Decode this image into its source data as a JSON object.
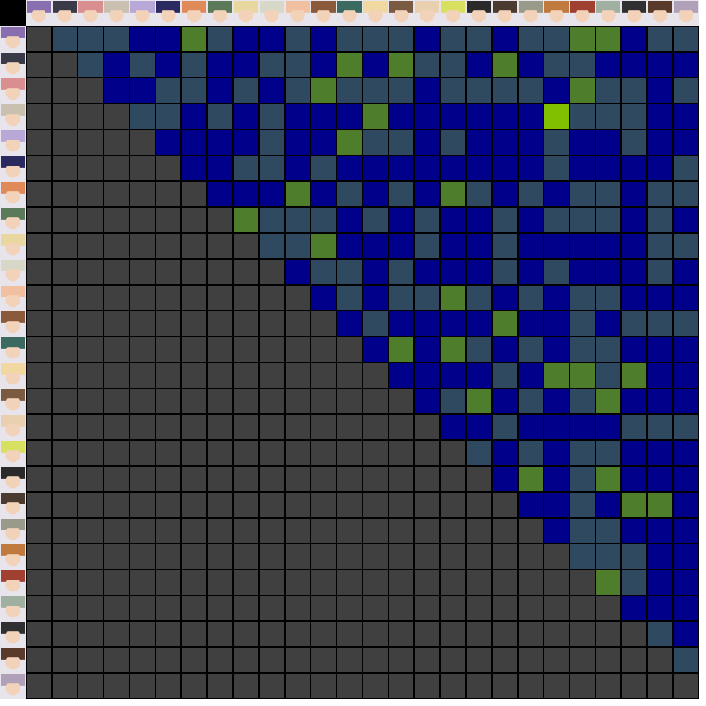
{
  "chart_data": {
    "type": "heatmap",
    "tick_labels": false,
    "grid": true,
    "colors": [
      "#2f4961",
      "#00008b",
      "#4e7d2b",
      "#80c000"
    ],
    "cells": [
      [
        null,
        0,
        0,
        0,
        1,
        1,
        2,
        0,
        1,
        1,
        0,
        1,
        0,
        0,
        0,
        1,
        0,
        0,
        1,
        0,
        0,
        2,
        2,
        1,
        0,
        0
      ],
      [
        null,
        null,
        0,
        1,
        0,
        1,
        0,
        1,
        1,
        0,
        0,
        1,
        2,
        1,
        2,
        0,
        0,
        1,
        2,
        1,
        0,
        0,
        1,
        1,
        1,
        1
      ],
      [
        null,
        null,
        null,
        1,
        1,
        0,
        0,
        1,
        0,
        1,
        0,
        2,
        0,
        0,
        0,
        1,
        0,
        0,
        0,
        0,
        1,
        2,
        0,
        0,
        1,
        0
      ],
      [
        null,
        null,
        null,
        null,
        0,
        0,
        1,
        0,
        1,
        0,
        1,
        1,
        1,
        2,
        1,
        1,
        1,
        1,
        1,
        1,
        3,
        0,
        0,
        0,
        1,
        1
      ],
      [
        null,
        null,
        null,
        null,
        null,
        1,
        1,
        1,
        1,
        0,
        1,
        1,
        2,
        0,
        0,
        1,
        0,
        1,
        1,
        1,
        0,
        1,
        1,
        0,
        1,
        1
      ],
      [
        null,
        null,
        null,
        null,
        null,
        null,
        1,
        1,
        0,
        0,
        1,
        0,
        1,
        1,
        1,
        1,
        1,
        1,
        1,
        1,
        0,
        1,
        1,
        1,
        1,
        0
      ],
      [
        null,
        null,
        null,
        null,
        null,
        null,
        null,
        1,
        1,
        1,
        2,
        1,
        0,
        1,
        0,
        1,
        2,
        0,
        1,
        0,
        1,
        0,
        0,
        1,
        0,
        0
      ],
      [
        null,
        null,
        null,
        null,
        null,
        null,
        null,
        null,
        2,
        0,
        0,
        0,
        1,
        0,
        1,
        0,
        1,
        1,
        0,
        1,
        0,
        0,
        0,
        1,
        0,
        1
      ],
      [
        null,
        null,
        null,
        null,
        null,
        null,
        null,
        null,
        null,
        0,
        0,
        2,
        1,
        1,
        1,
        0,
        1,
        1,
        0,
        1,
        1,
        1,
        1,
        1,
        0,
        0
      ],
      [
        null,
        null,
        null,
        null,
        null,
        null,
        null,
        null,
        null,
        null,
        1,
        0,
        0,
        1,
        0,
        1,
        1,
        1,
        0,
        1,
        0,
        1,
        1,
        1,
        0,
        1
      ],
      [
        null,
        null,
        null,
        null,
        null,
        null,
        null,
        null,
        null,
        null,
        null,
        1,
        0,
        1,
        0,
        0,
        2,
        0,
        1,
        0,
        1,
        0,
        0,
        1,
        1,
        1
      ],
      [
        null,
        null,
        null,
        null,
        null,
        null,
        null,
        null,
        null,
        null,
        null,
        null,
        1,
        0,
        1,
        1,
        1,
        1,
        2,
        1,
        1,
        0,
        1,
        0,
        0,
        0
      ],
      [
        null,
        null,
        null,
        null,
        null,
        null,
        null,
        null,
        null,
        null,
        null,
        null,
        null,
        1,
        2,
        1,
        2,
        0,
        1,
        0,
        1,
        0,
        0,
        1,
        1,
        1
      ],
      [
        null,
        null,
        null,
        null,
        null,
        null,
        null,
        null,
        null,
        null,
        null,
        null,
        null,
        null,
        1,
        1,
        1,
        1,
        0,
        1,
        2,
        2,
        0,
        2,
        1,
        1
      ],
      [
        null,
        null,
        null,
        null,
        null,
        null,
        null,
        null,
        null,
        null,
        null,
        null,
        null,
        null,
        null,
        1,
        0,
        2,
        1,
        0,
        1,
        0,
        2,
        1,
        1,
        1
      ],
      [
        null,
        null,
        null,
        null,
        null,
        null,
        null,
        null,
        null,
        null,
        null,
        null,
        null,
        null,
        null,
        null,
        1,
        1,
        0,
        1,
        1,
        1,
        1,
        0,
        0,
        0
      ],
      [
        null,
        null,
        null,
        null,
        null,
        null,
        null,
        null,
        null,
        null,
        null,
        null,
        null,
        null,
        null,
        null,
        null,
        0,
        1,
        0,
        1,
        0,
        0,
        1,
        1,
        1
      ],
      [
        null,
        null,
        null,
        null,
        null,
        null,
        null,
        null,
        null,
        null,
        null,
        null,
        null,
        null,
        null,
        null,
        null,
        null,
        1,
        2,
        1,
        0,
        2,
        1,
        1,
        1
      ],
      [
        null,
        null,
        null,
        null,
        null,
        null,
        null,
        null,
        null,
        null,
        null,
        null,
        null,
        null,
        null,
        null,
        null,
        null,
        null,
        1,
        1,
        0,
        1,
        2,
        2,
        1
      ],
      [
        null,
        null,
        null,
        null,
        null,
        null,
        null,
        null,
        null,
        null,
        null,
        null,
        null,
        null,
        null,
        null,
        null,
        null,
        null,
        null,
        1,
        0,
        0,
        1,
        1,
        1
      ],
      [
        null,
        null,
        null,
        null,
        null,
        null,
        null,
        null,
        null,
        null,
        null,
        null,
        null,
        null,
        null,
        null,
        null,
        null,
        null,
        null,
        null,
        0,
        0,
        0,
        1,
        1
      ],
      [
        null,
        null,
        null,
        null,
        null,
        null,
        null,
        null,
        null,
        null,
        null,
        null,
        null,
        null,
        null,
        null,
        null,
        null,
        null,
        null,
        null,
        null,
        2,
        0,
        1,
        1
      ],
      [
        null,
        null,
        null,
        null,
        null,
        null,
        null,
        null,
        null,
        null,
        null,
        null,
        null,
        null,
        null,
        null,
        null,
        null,
        null,
        null,
        null,
        null,
        null,
        1,
        1,
        1
      ],
      [
        null,
        null,
        null,
        null,
        null,
        null,
        null,
        null,
        null,
        null,
        null,
        null,
        null,
        null,
        null,
        null,
        null,
        null,
        null,
        null,
        null,
        null,
        null,
        null,
        0,
        1
      ],
      [
        null,
        null,
        null,
        null,
        null,
        null,
        null,
        null,
        null,
        null,
        null,
        null,
        null,
        null,
        null,
        null,
        null,
        null,
        null,
        null,
        null,
        null,
        null,
        null,
        null,
        0
      ],
      [
        null,
        null,
        null,
        null,
        null,
        null,
        null,
        null,
        null,
        null,
        null,
        null,
        null,
        null,
        null,
        null,
        null,
        null,
        null,
        null,
        null,
        null,
        null,
        null,
        null,
        null
      ]
    ]
  }
}
